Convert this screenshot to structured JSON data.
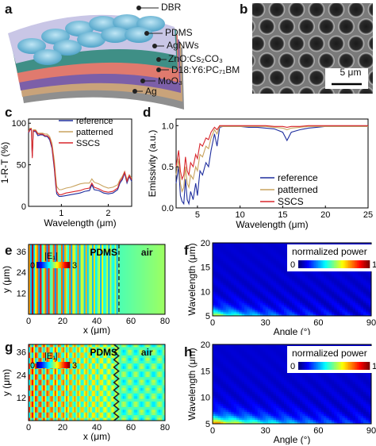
{
  "panels": {
    "a": {
      "letter": "a",
      "layers": [
        "DBR",
        "PDMS",
        "AgNWs",
        "ZnO:Cs₂CO₃",
        "D18:Y6:PC₇₁BM",
        "MoO₃",
        "Ag"
      ],
      "colors": {
        "dbr": "#68b8d8",
        "pdms": "#c9c6e6",
        "agnws": "#3f8f86",
        "zno": "#e07a6e",
        "active": "#7c5fa8",
        "moo3": "#c9a37a",
        "ag": "#8f8f8f"
      }
    },
    "b": {
      "letter": "b",
      "scalebar": "5 μm"
    },
    "e": {
      "letter": "e",
      "colorbar_label": "|E₁|",
      "cb_min": "0",
      "cb_max": "3",
      "region_left": "PDMS",
      "region_right": "air",
      "xlabel": "x (μm)",
      "ylabel": "y (μm)",
      "xticks": [
        "0",
        "20",
        "40",
        "60",
        "80"
      ],
      "yticks": [
        "12",
        "24",
        "36"
      ]
    },
    "f": {
      "letter": "f",
      "colorbar_label": "normalized power",
      "cb_min": "0",
      "cb_max": "1",
      "xlabel": "Angle (°)",
      "ylabel": "Wavelength (μm)",
      "xticks": [
        "0",
        "30",
        "60",
        "90"
      ],
      "yticks": [
        "5",
        "10",
        "15",
        "20"
      ]
    },
    "g": {
      "letter": "g",
      "colorbar_label": "|E₁|",
      "cb_min": "0",
      "cb_max": "3",
      "region_left": "PDMS",
      "region_right": "air",
      "xlabel": "x (μm)",
      "ylabel": "y (μm)",
      "xticks": [
        "0",
        "20",
        "40",
        "60",
        "80"
      ],
      "yticks": [
        "12",
        "24",
        "36"
      ]
    },
    "h": {
      "letter": "h",
      "colorbar_label": "normalized power",
      "cb_min": "0",
      "cb_max": "1",
      "xlabel": "Angle (°)",
      "ylabel": "Wavelength (μm)",
      "xticks": [
        "0",
        "30",
        "60",
        "90"
      ],
      "yticks": [
        "5",
        "10",
        "15",
        "20"
      ]
    }
  },
  "chart_data": [
    {
      "panel": "c",
      "letter": "c",
      "type": "line",
      "xlabel": "Wavelength (μm)",
      "ylabel": "1-R-T (%)",
      "xlim": [
        0.3,
        2.5
      ],
      "ylim": [
        0,
        105
      ],
      "xticks": [
        1,
        2
      ],
      "yticks": [
        0,
        50,
        100
      ],
      "legend_position": "top-right",
      "series": [
        {
          "name": "reference",
          "color": "#1f2e9e",
          "x": [
            0.3,
            0.33,
            0.36,
            0.38,
            0.4,
            0.45,
            0.5,
            0.55,
            0.6,
            0.65,
            0.7,
            0.75,
            0.8,
            0.85,
            0.88,
            0.9,
            0.95,
            1.0,
            1.1,
            1.2,
            1.3,
            1.4,
            1.5,
            1.6,
            1.65,
            1.7,
            1.8,
            1.9,
            2.0,
            2.1,
            2.2,
            2.25,
            2.3,
            2.35,
            2.4,
            2.45,
            2.5
          ],
          "y": [
            88,
            92,
            92,
            60,
            90,
            90,
            85,
            86,
            86,
            84,
            84,
            80,
            70,
            45,
            25,
            15,
            12,
            12,
            13,
            14,
            15,
            16,
            18,
            19,
            26,
            20,
            19,
            16,
            15,
            16,
            20,
            28,
            32,
            40,
            28,
            36,
            30
          ]
        },
        {
          "name": "patterned",
          "color": "#c9a35e",
          "x": [
            0.3,
            0.33,
            0.36,
            0.38,
            0.4,
            0.45,
            0.5,
            0.55,
            0.6,
            0.65,
            0.7,
            0.75,
            0.8,
            0.85,
            0.88,
            0.9,
            0.95,
            1.0,
            1.1,
            1.2,
            1.3,
            1.4,
            1.5,
            1.6,
            1.65,
            1.7,
            1.8,
            1.9,
            2.0,
            2.1,
            2.2,
            2.25,
            2.3,
            2.35,
            2.4,
            2.45,
            2.5
          ],
          "y": [
            90,
            94,
            94,
            62,
            92,
            92,
            88,
            88,
            88,
            87,
            87,
            84,
            76,
            55,
            35,
            24,
            20,
            20,
            22,
            23,
            25,
            27,
            28,
            28,
            33,
            29,
            27,
            24,
            22,
            23,
            26,
            32,
            36,
            42,
            32,
            38,
            34
          ]
        },
        {
          "name": "SSCS",
          "color": "#d8262c",
          "x": [
            0.3,
            0.33,
            0.36,
            0.38,
            0.4,
            0.45,
            0.5,
            0.55,
            0.6,
            0.65,
            0.7,
            0.75,
            0.8,
            0.85,
            0.88,
            0.9,
            0.95,
            1.0,
            1.1,
            1.2,
            1.3,
            1.4,
            1.5,
            1.6,
            1.65,
            1.7,
            1.8,
            1.9,
            2.0,
            2.1,
            2.2,
            2.25,
            2.3,
            2.35,
            2.4,
            2.45,
            2.5
          ],
          "y": [
            89,
            93,
            93,
            58,
            91,
            91,
            87,
            87,
            87,
            85,
            85,
            82,
            72,
            48,
            28,
            18,
            14,
            14,
            16,
            17,
            18,
            19,
            21,
            22,
            28,
            23,
            21,
            18,
            17,
            18,
            22,
            30,
            34,
            41,
            30,
            37,
            32
          ]
        }
      ]
    },
    {
      "panel": "d",
      "letter": "d",
      "type": "line",
      "xlabel": "Wavelength (μm)",
      "ylabel": "Emissivity (a.u.)",
      "xlim": [
        2.5,
        25
      ],
      "ylim": [
        0,
        1.08
      ],
      "xticks": [
        5,
        10,
        15,
        20,
        25
      ],
      "yticks": [
        0.0,
        0.5,
        1.0
      ],
      "legend_position": "bottom-right",
      "series": [
        {
          "name": "reference",
          "color": "#1f2e9e",
          "x": [
            2.5,
            2.8,
            3.0,
            3.2,
            3.4,
            3.6,
            3.8,
            4.0,
            4.2,
            4.5,
            4.8,
            5.0,
            5.3,
            5.6,
            6.0,
            6.3,
            6.6,
            7.0,
            7.3,
            7.6,
            8.0,
            9,
            10,
            11,
            12,
            13,
            14,
            15,
            15.5,
            16,
            17,
            18,
            19,
            20,
            22,
            25
          ],
          "y": [
            0.3,
            0.5,
            0.15,
            0.08,
            0.05,
            0.35,
            0.1,
            0.05,
            0.2,
            0.1,
            0.3,
            0.15,
            0.45,
            0.4,
            0.55,
            0.5,
            0.7,
            0.9,
            0.75,
            0.98,
            0.99,
            0.99,
            0.99,
            0.98,
            0.98,
            0.97,
            0.96,
            0.92,
            0.82,
            0.92,
            0.95,
            0.97,
            0.98,
            0.99,
            0.99,
            0.99
          ]
        },
        {
          "name": "patterned",
          "color": "#c9a35e",
          "x": [
            2.5,
            2.8,
            3.0,
            3.2,
            3.4,
            3.6,
            3.8,
            4.0,
            4.2,
            4.5,
            4.8,
            5.0,
            5.3,
            5.6,
            6.0,
            6.3,
            6.6,
            7.0,
            7.3,
            7.6,
            8.0,
            9,
            10,
            11,
            12,
            13,
            14,
            15,
            15.5,
            16,
            17,
            18,
            19,
            20,
            22,
            25
          ],
          "y": [
            0.4,
            0.6,
            0.3,
            0.2,
            0.25,
            0.5,
            0.3,
            0.25,
            0.4,
            0.35,
            0.5,
            0.45,
            0.65,
            0.62,
            0.75,
            0.72,
            0.85,
            0.95,
            0.9,
            0.99,
            0.99,
            0.99,
            0.99,
            0.99,
            0.99,
            0.99,
            0.98,
            0.97,
            0.95,
            0.97,
            0.98,
            0.99,
            0.99,
            0.99,
            0.99,
            0.99
          ]
        },
        {
          "name": "SSCS",
          "color": "#d8262c",
          "x": [
            2.5,
            2.8,
            3.0,
            3.2,
            3.4,
            3.6,
            3.8,
            4.0,
            4.2,
            4.5,
            4.8,
            5.0,
            5.3,
            5.6,
            6.0,
            6.3,
            6.6,
            7.0,
            7.3,
            7.6,
            8.0,
            9,
            10,
            11,
            12,
            13,
            14,
            15,
            15.5,
            16,
            17,
            18,
            19,
            20,
            22,
            25
          ],
          "y": [
            0.5,
            0.7,
            0.45,
            0.35,
            0.4,
            0.62,
            0.45,
            0.4,
            0.55,
            0.5,
            0.65,
            0.6,
            0.78,
            0.75,
            0.85,
            0.83,
            0.92,
            0.98,
            0.95,
            1.0,
            1.0,
            1.0,
            1.0,
            1.0,
            1.0,
            1.0,
            0.99,
            0.99,
            0.98,
            0.99,
            0.99,
            1.0,
            1.0,
            1.0,
            1.0,
            1.0
          ]
        }
      ]
    }
  ]
}
